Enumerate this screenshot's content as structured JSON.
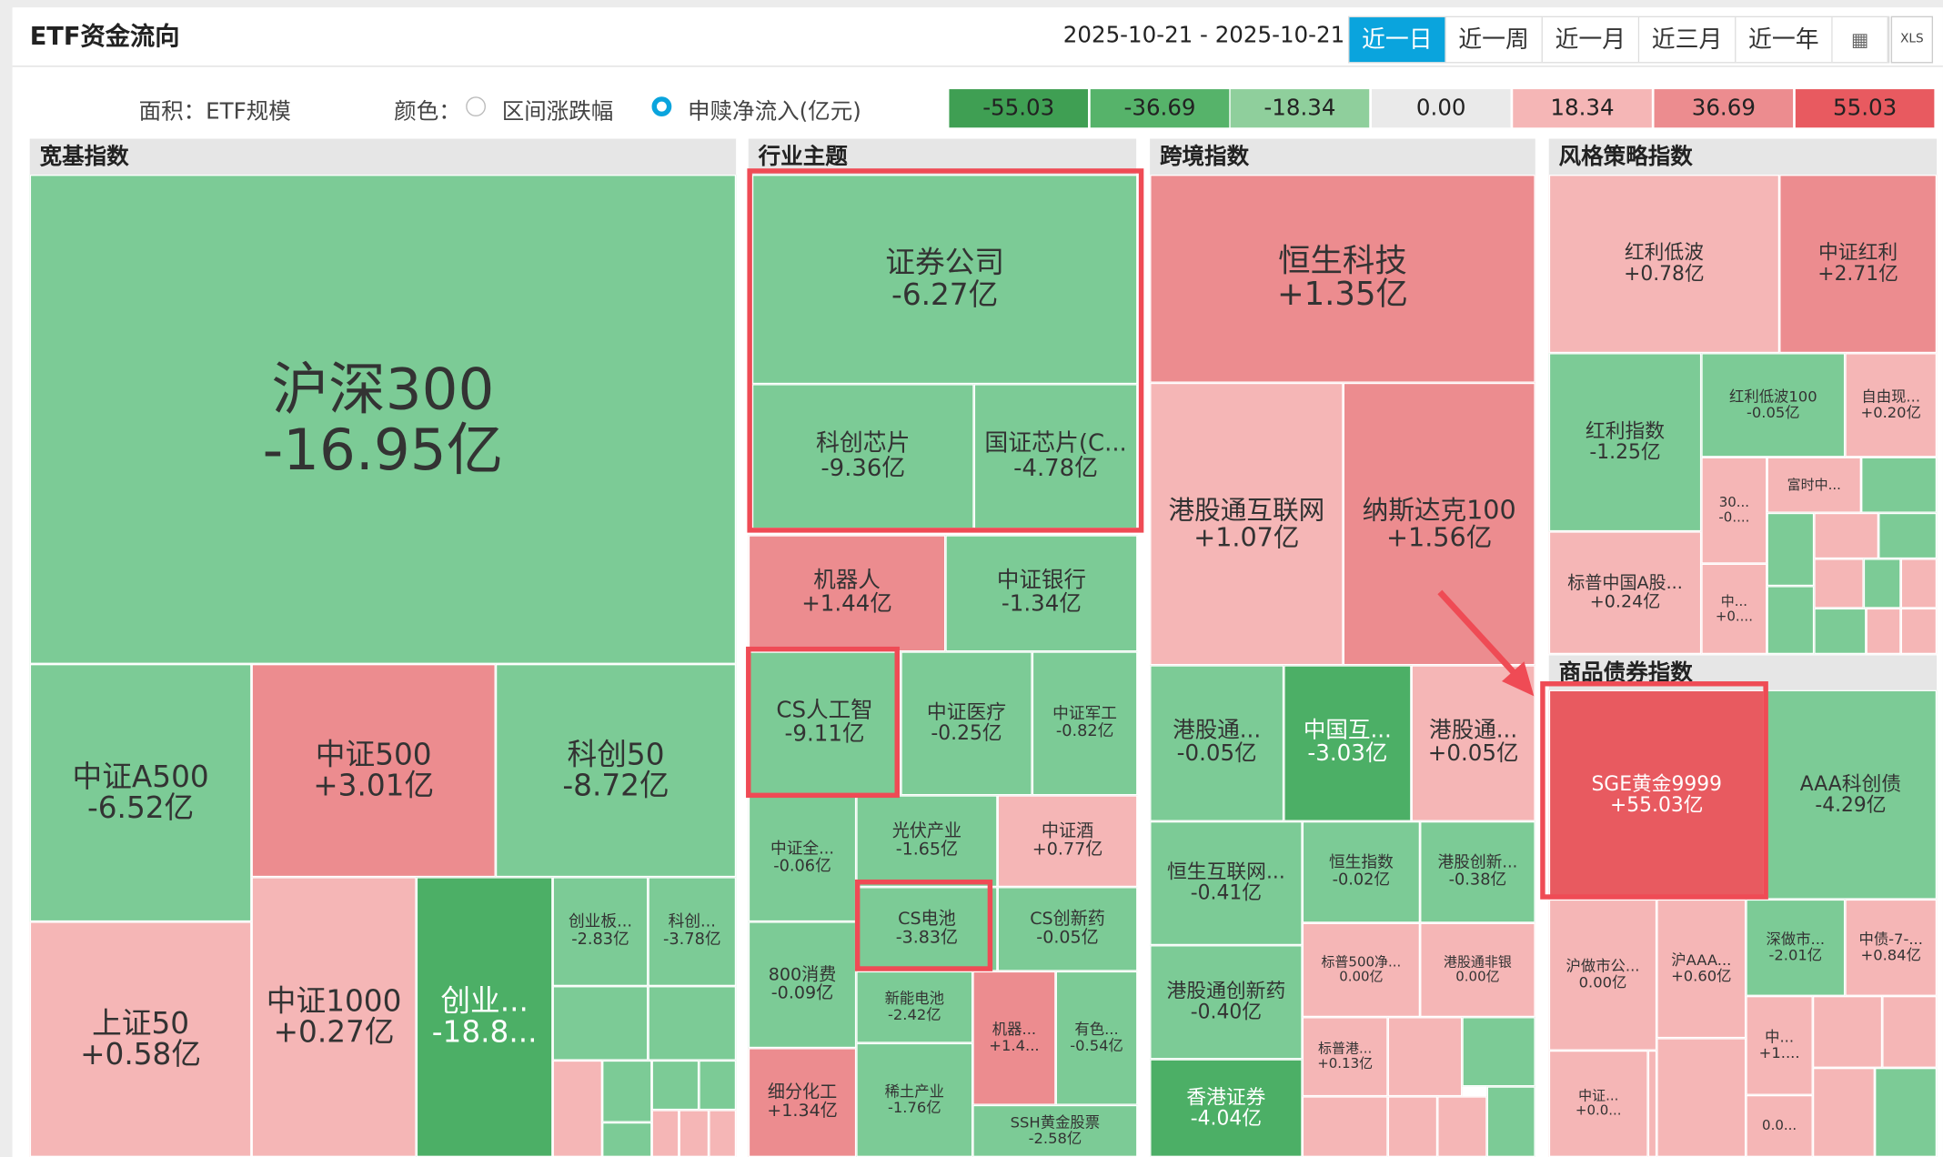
{
  "header": {
    "title": "ETF资金流向",
    "date_range": "2025-10-21 - 2025-10-21",
    "tabs": [
      {
        "label": "近一日",
        "active": true
      },
      {
        "label": "近一周"
      },
      {
        "label": "近一月"
      },
      {
        "label": "近三月"
      },
      {
        "label": "近一年"
      }
    ],
    "calendar_icon": "calendar-icon",
    "export_label": "XLS"
  },
  "options": {
    "area_label": "面积：ETF规模",
    "color_label": "颜色：",
    "radio_1": "区间涨跌幅",
    "radio_2": "申赎净流入(亿元)",
    "selected": "申赎净流入(亿元)"
  },
  "legend": [
    {
      "label": "-55.03",
      "color": "#3f9f53"
    },
    {
      "label": "-36.69",
      "color": "#56b36a"
    },
    {
      "label": "-18.34",
      "color": "#8fcf9c"
    },
    {
      "label": "0.00",
      "color": "#eaeaea"
    },
    {
      "label": "18.34",
      "color": "#f5b6b6"
    },
    {
      "label": "36.69",
      "color": "#ec8c8f"
    },
    {
      "label": "55.03",
      "color": "#e85a60"
    }
  ],
  "chart_data": {
    "type": "treemap",
    "unit": "亿",
    "sections": [
      {
        "name": "宽基指数",
        "items": [
          {
            "name": "沪深300",
            "value": "-16.95亿"
          },
          {
            "name": "中证A500",
            "value": "-6.52亿"
          },
          {
            "name": "中证500",
            "value": "+3.01亿"
          },
          {
            "name": "科创50",
            "value": "-8.72亿"
          },
          {
            "name": "上证50",
            "value": "+0.58亿"
          },
          {
            "name": "中证1000",
            "value": "+0.27亿"
          },
          {
            "name": "创业...",
            "value": "-18.8..."
          },
          {
            "name": "创业板...",
            "value": "-2.83亿"
          },
          {
            "name": "科创...",
            "value": "-3.78亿"
          }
        ]
      },
      {
        "name": "行业主题",
        "items": [
          {
            "name": "证券公司",
            "value": "-6.27亿"
          },
          {
            "name": "科创芯片",
            "value": "-9.36亿"
          },
          {
            "name": "国证芯片(C...",
            "value": "-4.78亿"
          },
          {
            "name": "机器人",
            "value": "+1.44亿"
          },
          {
            "name": "中证银行",
            "value": "-1.34亿"
          },
          {
            "name": "CS人工智",
            "value": "-9.11亿"
          },
          {
            "name": "中证医疗",
            "value": "-0.25亿"
          },
          {
            "name": "中证军工",
            "value": "-0.82亿"
          },
          {
            "name": "中证全...",
            "value": "-0.06亿"
          },
          {
            "name": "光伏产业",
            "value": "-1.65亿"
          },
          {
            "name": "中证酒",
            "value": "+0.77亿"
          },
          {
            "name": "CS电池",
            "value": "-3.83亿"
          },
          {
            "name": "CS创新药",
            "value": "-0.05亿"
          },
          {
            "name": "800消费",
            "value": "-0.09亿"
          },
          {
            "name": "新能电池",
            "value": "-2.42亿"
          },
          {
            "name": "机器...",
            "value": "+1.4..."
          },
          {
            "name": "有色...",
            "value": "-0.54亿"
          },
          {
            "name": "细分化工",
            "value": "+1.34亿"
          },
          {
            "name": "稀土产业",
            "value": "-1.76亿"
          },
          {
            "name": "SSH黄金股票",
            "value": "-2.58亿"
          }
        ]
      },
      {
        "name": "跨境指数",
        "items": [
          {
            "name": "恒生科技",
            "value": "+1.35亿"
          },
          {
            "name": "港股通互联网",
            "value": "+1.07亿"
          },
          {
            "name": "纳斯达克100",
            "value": "+1.56亿"
          },
          {
            "name": "港股通...",
            "value": "-0.05亿"
          },
          {
            "name": "中国互...",
            "value": "-3.03亿"
          },
          {
            "name": "港股通...",
            "value": "+0.05亿"
          },
          {
            "name": "恒生互联网...",
            "value": "-0.41亿"
          },
          {
            "name": "恒生指数",
            "value": "-0.02亿"
          },
          {
            "name": "港股创新...",
            "value": "-0.38亿"
          },
          {
            "name": "港股通创新药",
            "value": "-0.40亿"
          },
          {
            "name": "标普500净...",
            "value": "0.00亿"
          },
          {
            "name": "港股通非银",
            "value": "0.00亿"
          },
          {
            "name": "标普港...",
            "value": "+0.13亿"
          },
          {
            "name": "香港证券",
            "value": "-4.04亿"
          }
        ]
      },
      {
        "name": "风格策略指数",
        "items": [
          {
            "name": "红利低波",
            "value": "+0.78亿"
          },
          {
            "name": "中证红利",
            "value": "+2.71亿"
          },
          {
            "name": "红利指数",
            "value": "-1.25亿"
          },
          {
            "name": "红利低波100",
            "value": "-0.05亿"
          },
          {
            "name": "自由现...",
            "value": "+0.20亿"
          },
          {
            "name": "富时中...",
            "value": ""
          },
          {
            "name": "30...",
            "value": "-0...."
          },
          {
            "name": "标普中国A股...",
            "value": "+0.24亿"
          },
          {
            "name": "中...",
            "value": "+0...."
          }
        ]
      },
      {
        "name": "商品债券指数",
        "items": [
          {
            "name": "SGE黄金9999",
            "value": "+55.03亿"
          },
          {
            "name": "AAA科创债",
            "value": "-4.29亿"
          },
          {
            "name": "沪做市公...",
            "value": "0.00亿"
          },
          {
            "name": "沪AAA...",
            "value": "+0.60亿"
          },
          {
            "name": "深做市...",
            "value": "-2.01亿"
          },
          {
            "name": "中债-7-...",
            "value": "+0.84亿"
          },
          {
            "name": "中...",
            "value": "+1...."
          },
          {
            "name": "中证...",
            "value": "+0.0..."
          },
          {
            "name": "0.0...",
            "value": ""
          }
        ]
      }
    ]
  }
}
